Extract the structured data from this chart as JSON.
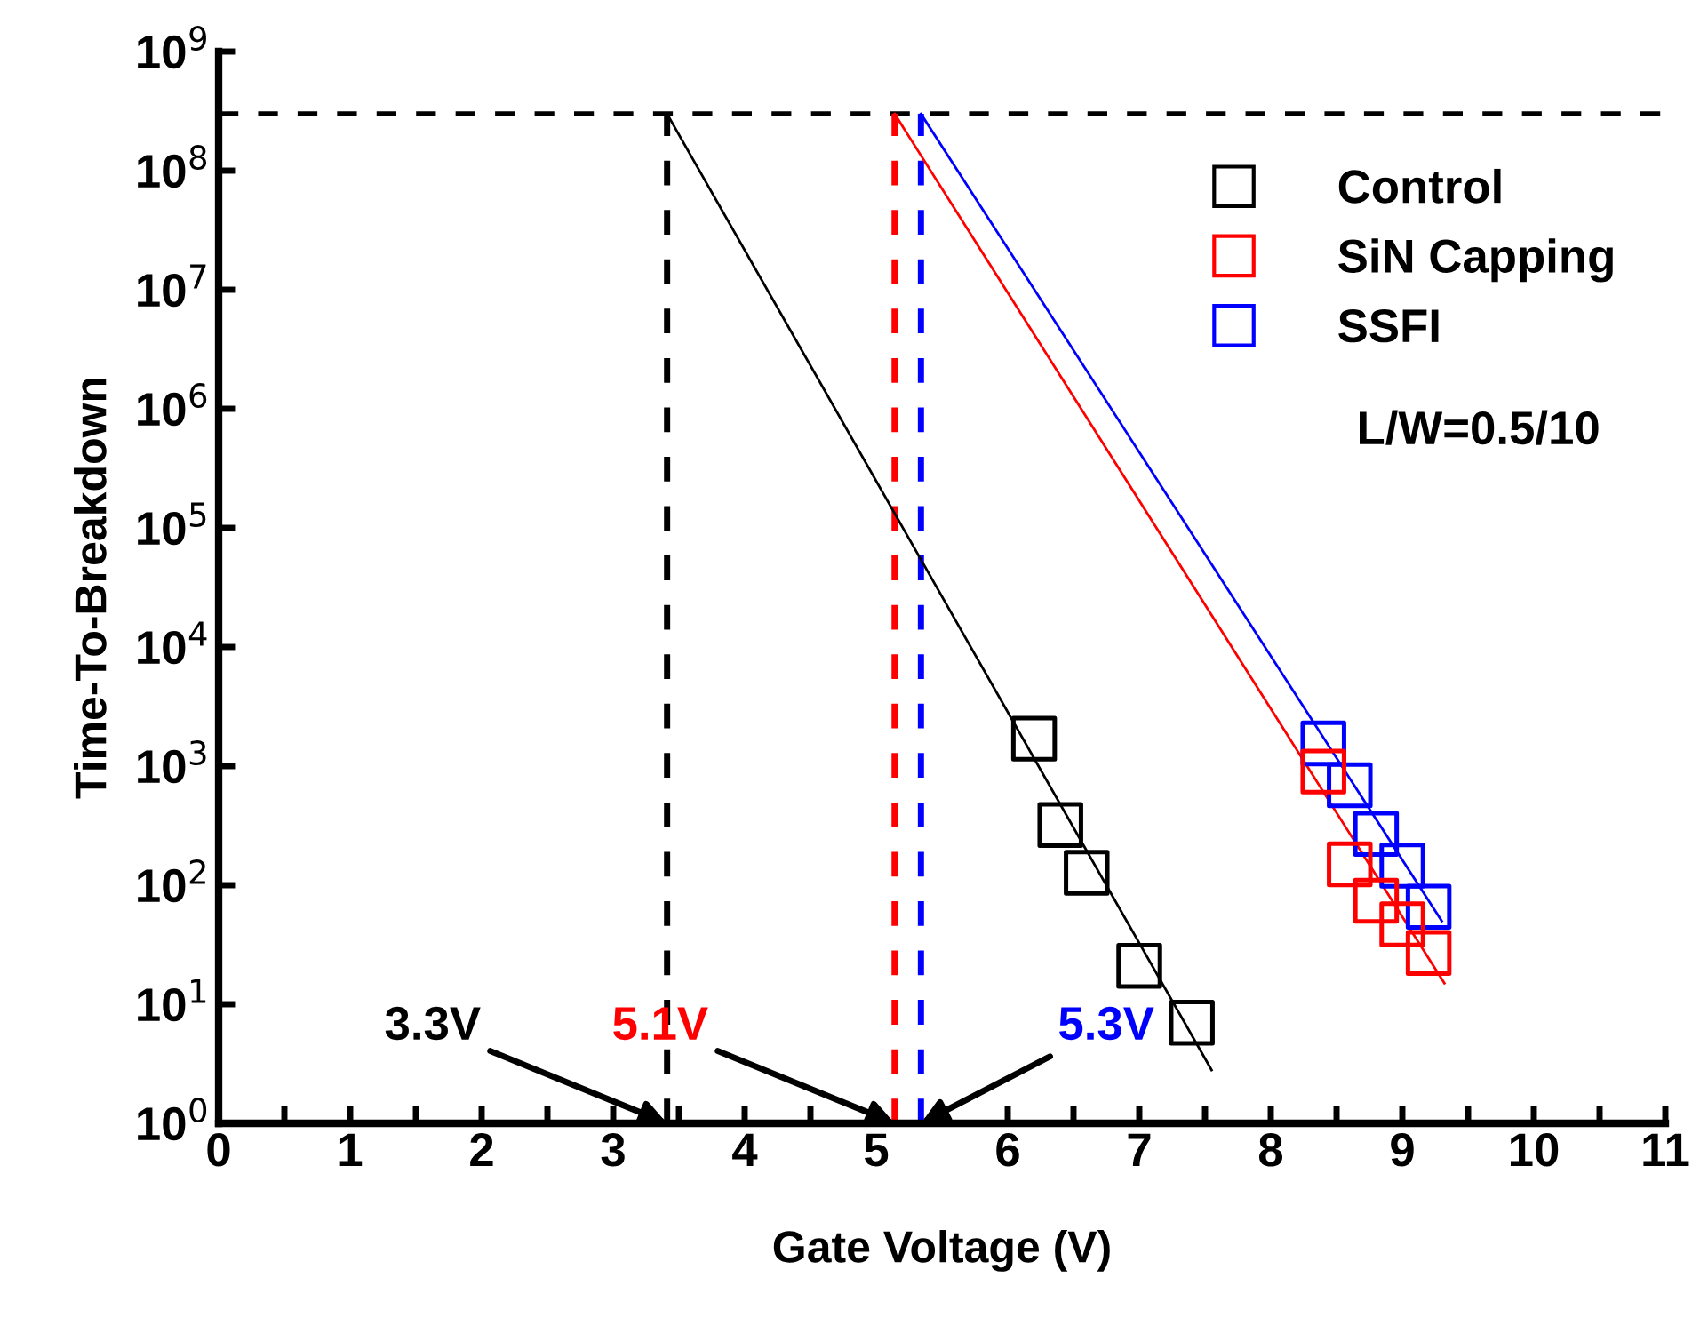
{
  "chart_data": {
    "type": "scatter",
    "xlabel": "Gate Voltage (V)",
    "ylabel": "Time-To-Breakdown",
    "log": "y",
    "grid": false,
    "legend": "top right",
    "marker": "square",
    "xlim": [
      0,
      11
    ],
    "ylim": [
      1,
      1000000000
    ],
    "xticks": [
      0,
      {
        "value": 0.5,
        "label": null
      },
      1,
      {
        "value": 1.5,
        "label": null
      },
      2,
      {
        "value": 2.5,
        "label": null
      },
      3,
      {
        "value": 3.5,
        "label": null
      },
      4,
      {
        "value": 4.5,
        "label": null
      },
      5,
      {
        "value": 5.5,
        "label": null
      },
      6,
      {
        "value": 6.5,
        "label": null
      },
      7,
      {
        "value": 7.5,
        "label": null
      },
      8,
      {
        "value": 8.5,
        "label": null
      },
      9,
      {
        "value": 9.5,
        "label": null
      },
      10,
      {
        "value": 10.5,
        "label": null
      },
      11
    ],
    "yticks": [
      {
        "value": 1,
        "label": "10$^{0}$"
      },
      {
        "value": 10,
        "label": "10$^{1}$"
      },
      {
        "value": 100,
        "label": "10$^{2}$"
      },
      {
        "value": 1000,
        "label": "10$^{3}$"
      },
      {
        "value": 10000,
        "label": "10$^{4}$"
      },
      {
        "value": 100000,
        "label": "10$^{5}$"
      },
      {
        "value": 1000000,
        "label": "10$^{6}$"
      },
      {
        "value": 10000000,
        "label": "10$^{7}$"
      },
      {
        "value": 100000000,
        "label": "10$^{8}$"
      },
      {
        "value": 1000000000,
        "label": "10$^{9}$"
      }
    ],
    "series": [
      {
        "name": "Control",
        "color": "#000000",
        "x": [
          6.2,
          6.4,
          6.6,
          7.0,
          7.4
        ],
        "values": [
          1700,
          320,
          127,
          21,
          7
        ]
      },
      {
        "name": "SiN Capping",
        "color": "#ff0000",
        "x": [
          8.4,
          8.6,
          8.8,
          9.0,
          9.2
        ],
        "values": [
          900,
          150,
          74,
          47,
          27
        ]
      },
      {
        "name": "SSFI",
        "color": "#0000ff",
        "x": [
          8.4,
          8.6,
          8.8,
          9.0,
          9.2
        ],
        "values": [
          1550,
          690,
          270,
          146,
          66
        ]
      },
      {
        "type": "line",
        "marker": "none",
        "color": "#000000",
        "x": [
          3.41,
          7.55
        ],
        "values": [
          300000000,
          2.8
        ]
      },
      {
        "type": "line",
        "marker": "none",
        "color": "#ff0000",
        "x": [
          5.14,
          9.32
        ],
        "values": [
          300000000,
          15
        ]
      },
      {
        "type": "line",
        "marker": "none",
        "color": "#0000ff",
        "x": [
          5.34,
          9.3
        ],
        "values": [
          300000000,
          50
        ]
      }
    ],
    "ref_lines": [
      {
        "axis": "y",
        "value": 300000000,
        "color": "#000000",
        "line_style": "dashed"
      },
      {
        "axis": "x",
        "value": 3.41,
        "color": "#000000",
        "line_style": "dashed"
      },
      {
        "axis": "x",
        "value": 5.14,
        "color": "#ff0000",
        "line_style": "dashed"
      },
      {
        "axis": "x",
        "value": 5.34,
        "color": "#0000ff",
        "line_style": "dashed"
      }
    ],
    "annotations": [
      {
        "text": "3.3V",
        "x": 3.41,
        "y": 1
      },
      {
        "text": "5.1V",
        "x": 5.14,
        "y": 1
      },
      {
        "text": "5.3V",
        "x": 5.34,
        "y": 1
      },
      "L/W=0.5/10"
    ]
  }
}
